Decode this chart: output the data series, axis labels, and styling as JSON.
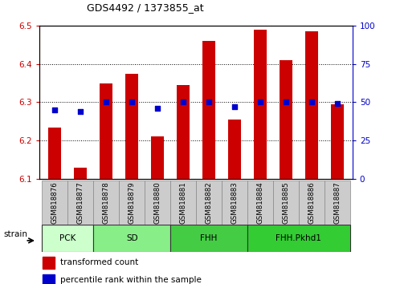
{
  "title": "GDS4492 / 1373855_at",
  "samples": [
    "GSM818876",
    "GSM818877",
    "GSM818878",
    "GSM818879",
    "GSM818880",
    "GSM818881",
    "GSM818882",
    "GSM818883",
    "GSM818884",
    "GSM818885",
    "GSM818886",
    "GSM818887"
  ],
  "red_values": [
    6.235,
    6.13,
    6.35,
    6.375,
    6.21,
    6.345,
    6.46,
    6.255,
    6.49,
    6.41,
    6.485,
    6.295
  ],
  "blue_percentiles": [
    45,
    44,
    50,
    50,
    46,
    50,
    50,
    47,
    50,
    50,
    50,
    49
  ],
  "ylim_left": [
    6.1,
    6.5
  ],
  "ylim_right": [
    0,
    100
  ],
  "yticks_left": [
    6.1,
    6.2,
    6.3,
    6.4,
    6.5
  ],
  "yticks_right": [
    0,
    25,
    50,
    75,
    100
  ],
  "bar_color": "#CC0000",
  "dot_color": "#0000CC",
  "bar_bottom": 6.1,
  "groups": [
    {
      "label": "PCK",
      "start": 0,
      "end": 2,
      "color": "#ccffcc"
    },
    {
      "label": "SD",
      "start": 2,
      "end": 5,
      "color": "#88ee88"
    },
    {
      "label": "FHH",
      "start": 5,
      "end": 8,
      "color": "#44cc44"
    },
    {
      "label": "FHH.Pkhd1",
      "start": 8,
      "end": 12,
      "color": "#33cc33"
    }
  ],
  "strain_label": "strain",
  "legend_red": "transformed count",
  "legend_blue": "percentile rank within the sample"
}
